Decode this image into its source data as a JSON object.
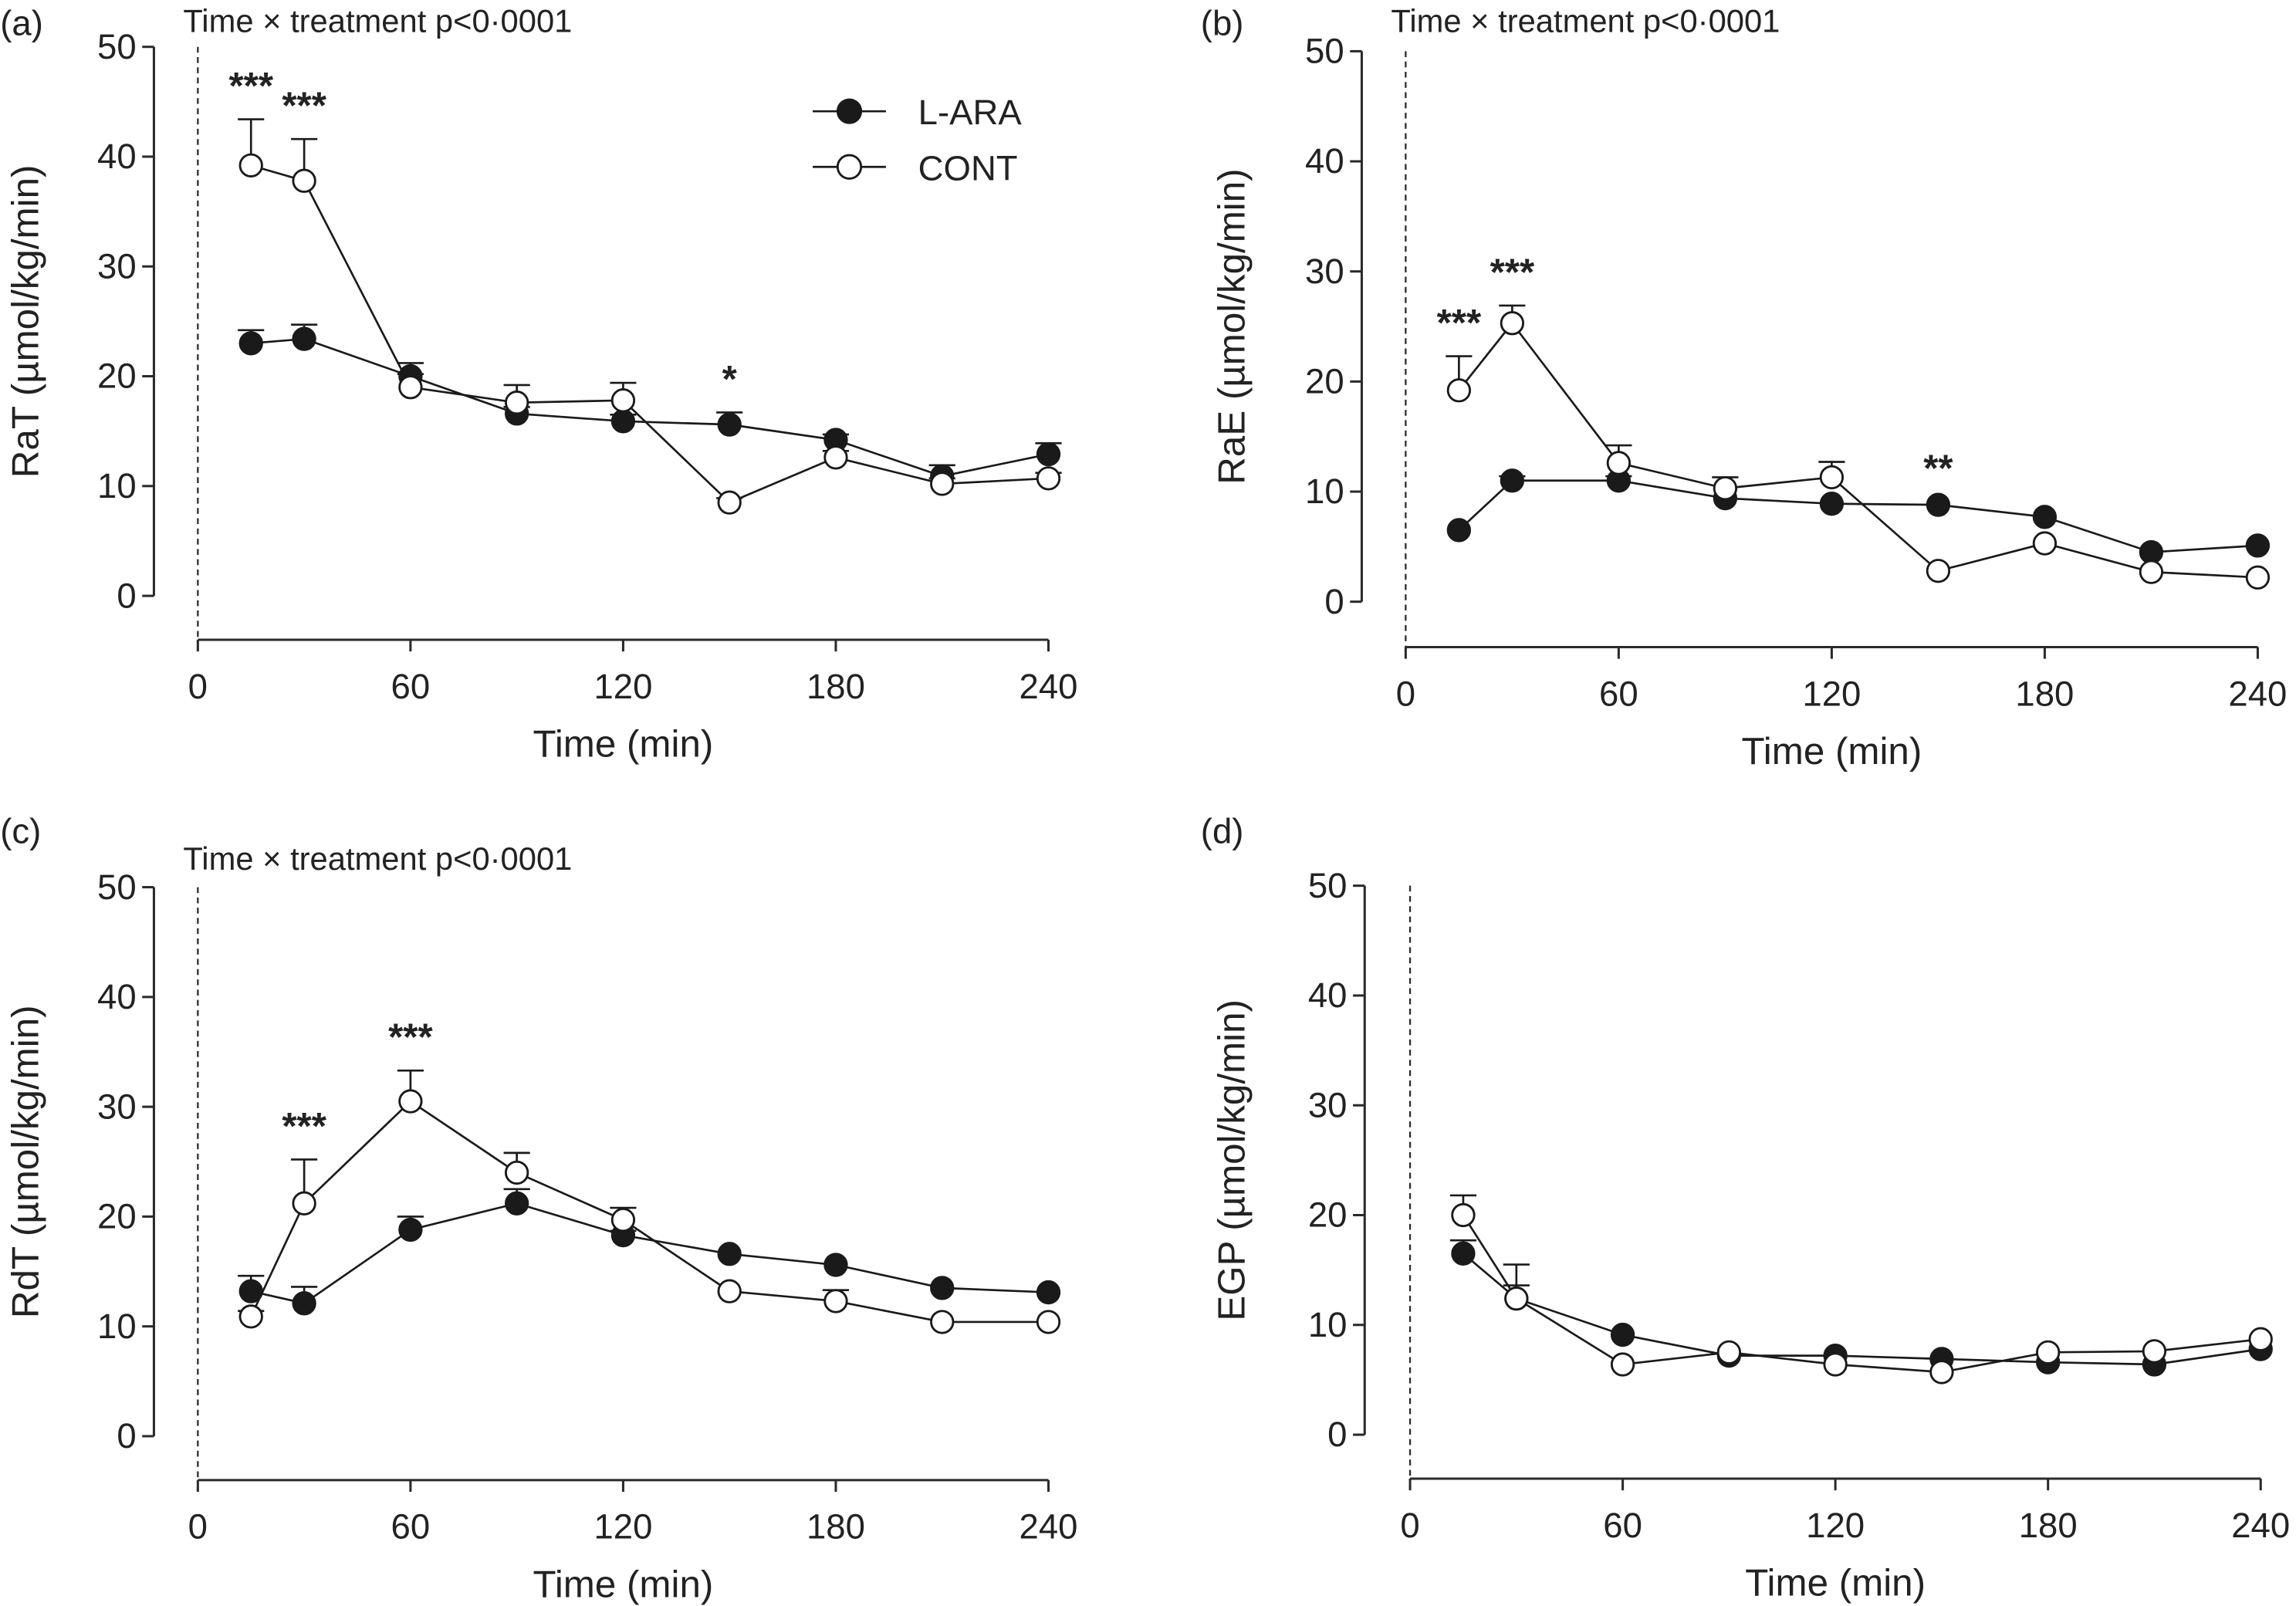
{
  "chart_data": [
    {
      "type": "line",
      "panel_label": "(a)",
      "title": "Time × treatment p<0·0001",
      "xlabel": "Time (min)",
      "ylabel": "RaT (µmol/kg/min)",
      "xlim": [
        0,
        240
      ],
      "ylim": [
        0,
        50
      ],
      "xticks": [
        "0",
        "60",
        "120",
        "180",
        "240"
      ],
      "yticks": [
        "0",
        "10",
        "20",
        "30",
        "40",
        "50"
      ],
      "x": [
        15,
        30,
        60,
        90,
        120,
        150,
        180,
        210,
        240
      ],
      "series": [
        {
          "name": "L-ARA",
          "marker": "filled-circle",
          "values": [
            23.0,
            23.4,
            20.0,
            16.6,
            15.9,
            15.6,
            14.2,
            10.9,
            12.9
          ],
          "err_upper": [
            1.2,
            1.3,
            1.2,
            0.6,
            0.6,
            1.1,
            0.5,
            1.0,
            1.0
          ]
        },
        {
          "name": "CONT",
          "marker": "open-circle",
          "values": [
            39.2,
            37.8,
            19.0,
            17.6,
            17.8,
            8.5,
            12.6,
            10.2,
            10.7
          ],
          "err_upper": [
            4.2,
            3.8,
            1.2,
            1.6,
            1.6,
            0.4,
            0.6,
            0.5,
            0.5
          ]
        }
      ],
      "annotations": [
        {
          "x": 15,
          "text": "***"
        },
        {
          "x": 30,
          "text": "***"
        },
        {
          "x": 150,
          "text": "*"
        }
      ],
      "grid": false,
      "legend": {
        "position": "top-right",
        "entries": [
          "L-ARA",
          "CONT"
        ]
      },
      "reference_line": {
        "x": 0,
        "style": "dashed"
      }
    },
    {
      "type": "line",
      "panel_label": "(b)",
      "title": "Time × treatment p<0·0001",
      "xlabel": "Time (min)",
      "ylabel": "RaE (µmol/kg/min)",
      "xlim": [
        0,
        240
      ],
      "ylim": [
        0,
        50
      ],
      "xticks": [
        "0",
        "60",
        "120",
        "180",
        "240"
      ],
      "yticks": [
        "0",
        "10",
        "20",
        "30",
        "40",
        "50"
      ],
      "x": [
        15,
        30,
        60,
        90,
        120,
        150,
        180,
        210,
        240
      ],
      "series": [
        {
          "name": "L-ARA",
          "marker": "filled-circle",
          "values": [
            6.5,
            11.0,
            11.0,
            9.4,
            8.9,
            8.8,
            7.7,
            4.5,
            5.1
          ],
          "err_upper": [
            0.3,
            0.4,
            0.4,
            0.3,
            0.3,
            0.3,
            0.3,
            0.3,
            0.3
          ]
        },
        {
          "name": "CONT",
          "marker": "open-circle",
          "values": [
            19.2,
            25.3,
            12.6,
            10.3,
            11.3,
            2.8,
            5.3,
            2.7,
            2.2
          ],
          "err_upper": [
            3.1,
            1.6,
            1.6,
            1.0,
            1.4,
            0.2,
            0.3,
            0.2,
            0.2
          ]
        }
      ],
      "annotations": [
        {
          "x": 15,
          "text": "***"
        },
        {
          "x": 30,
          "text": "***"
        },
        {
          "x": 150,
          "text": "**"
        }
      ],
      "grid": false,
      "reference_line": {
        "x": 0,
        "style": "dashed"
      }
    },
    {
      "type": "line",
      "panel_label": "(c)",
      "title": "Time × treatment p<0·0001",
      "xlabel": "Time (min)",
      "ylabel": "RdT (µmol/kg/min)",
      "xlim": [
        0,
        240
      ],
      "ylim": [
        0,
        50
      ],
      "xticks": [
        "0",
        "60",
        "120",
        "180",
        "240"
      ],
      "yticks": [
        "0",
        "10",
        "20",
        "30",
        "40",
        "50"
      ],
      "x": [
        15,
        30,
        60,
        90,
        120,
        150,
        180,
        210,
        240
      ],
      "series": [
        {
          "name": "L-ARA",
          "marker": "filled-circle",
          "values": [
            13.2,
            12.1,
            18.8,
            21.2,
            18.3,
            16.6,
            15.6,
            13.5,
            13.1
          ],
          "err_upper": [
            1.4,
            1.5,
            1.2,
            1.3,
            0.4,
            0.3,
            0.3,
            0.3,
            0.3
          ]
        },
        {
          "name": "CONT",
          "marker": "open-circle",
          "values": [
            10.9,
            21.2,
            30.5,
            24.0,
            19.7,
            13.2,
            12.3,
            10.4,
            10.4
          ],
          "err_upper": [
            0.5,
            4.0,
            2.8,
            1.8,
            1.1,
            0.3,
            1.0,
            0.3,
            0.3
          ]
        }
      ],
      "annotations": [
        {
          "x": 30,
          "text": "***"
        },
        {
          "x": 60,
          "text": "***"
        }
      ],
      "grid": false,
      "reference_line": {
        "x": 0,
        "style": "dashed"
      }
    },
    {
      "type": "line",
      "panel_label": "(d)",
      "title": "",
      "xlabel": "Time (min)",
      "ylabel": "EGP (µmol/kg/min)",
      "xlim": [
        0,
        240
      ],
      "ylim": [
        0,
        50
      ],
      "xticks": [
        "0",
        "60",
        "120",
        "180",
        "240"
      ],
      "yticks": [
        "0",
        "10",
        "20",
        "30",
        "40",
        "50"
      ],
      "x": [
        15,
        30,
        60,
        90,
        120,
        150,
        180,
        210,
        240
      ],
      "series": [
        {
          "name": "L-ARA",
          "marker": "filled-circle",
          "values": [
            16.5,
            12.4,
            9.1,
            7.2,
            7.2,
            6.9,
            6.6,
            6.4,
            7.8
          ],
          "err_upper": [
            1.2,
            1.2,
            0.3,
            0.3,
            0.3,
            0.3,
            0.3,
            0.3,
            0.3
          ]
        },
        {
          "name": "CONT",
          "marker": "open-circle",
          "values": [
            20.0,
            12.4,
            6.4,
            7.5,
            6.4,
            5.7,
            7.5,
            7.6,
            8.7
          ],
          "err_upper": [
            1.8,
            3.1,
            0.3,
            0.3,
            0.3,
            0.3,
            0.3,
            0.3,
            0.3
          ]
        }
      ],
      "annotations": [],
      "grid": false,
      "reference_line": {
        "x": 0,
        "style": "dashed"
      }
    }
  ]
}
